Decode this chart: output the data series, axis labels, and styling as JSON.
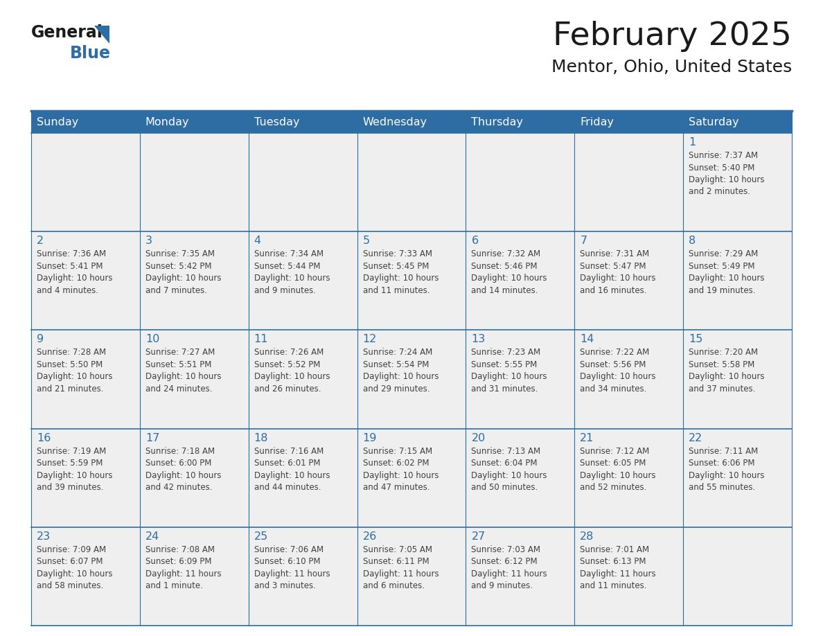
{
  "title": "February 2025",
  "subtitle": "Mentor, Ohio, United States",
  "days_of_week": [
    "Sunday",
    "Monday",
    "Tuesday",
    "Wednesday",
    "Thursday",
    "Friday",
    "Saturday"
  ],
  "header_bg": "#2E6DA4",
  "header_text": "#FFFFFF",
  "cell_bg": "#EFEFEF",
  "cell_bg_white": "#FFFFFF",
  "border_color": "#2E6DA4",
  "day_num_color": "#2E6DA4",
  "text_color": "#404040",
  "title_color": "#1a1a1a",
  "logo_black": "#1a1a1a",
  "logo_blue": "#2E6DA4",
  "week1": {
    "days": [
      null,
      null,
      null,
      null,
      null,
      null,
      1
    ],
    "data": [
      null,
      null,
      null,
      null,
      null,
      null,
      "Sunrise: 7:37 AM\nSunset: 5:40 PM\nDaylight: 10 hours\nand 2 minutes."
    ]
  },
  "week2": {
    "days": [
      2,
      3,
      4,
      5,
      6,
      7,
      8
    ],
    "data": [
      "Sunrise: 7:36 AM\nSunset: 5:41 PM\nDaylight: 10 hours\nand 4 minutes.",
      "Sunrise: 7:35 AM\nSunset: 5:42 PM\nDaylight: 10 hours\nand 7 minutes.",
      "Sunrise: 7:34 AM\nSunset: 5:44 PM\nDaylight: 10 hours\nand 9 minutes.",
      "Sunrise: 7:33 AM\nSunset: 5:45 PM\nDaylight: 10 hours\nand 11 minutes.",
      "Sunrise: 7:32 AM\nSunset: 5:46 PM\nDaylight: 10 hours\nand 14 minutes.",
      "Sunrise: 7:31 AM\nSunset: 5:47 PM\nDaylight: 10 hours\nand 16 minutes.",
      "Sunrise: 7:29 AM\nSunset: 5:49 PM\nDaylight: 10 hours\nand 19 minutes."
    ]
  },
  "week3": {
    "days": [
      9,
      10,
      11,
      12,
      13,
      14,
      15
    ],
    "data": [
      "Sunrise: 7:28 AM\nSunset: 5:50 PM\nDaylight: 10 hours\nand 21 minutes.",
      "Sunrise: 7:27 AM\nSunset: 5:51 PM\nDaylight: 10 hours\nand 24 minutes.",
      "Sunrise: 7:26 AM\nSunset: 5:52 PM\nDaylight: 10 hours\nand 26 minutes.",
      "Sunrise: 7:24 AM\nSunset: 5:54 PM\nDaylight: 10 hours\nand 29 minutes.",
      "Sunrise: 7:23 AM\nSunset: 5:55 PM\nDaylight: 10 hours\nand 31 minutes.",
      "Sunrise: 7:22 AM\nSunset: 5:56 PM\nDaylight: 10 hours\nand 34 minutes.",
      "Sunrise: 7:20 AM\nSunset: 5:58 PM\nDaylight: 10 hours\nand 37 minutes."
    ]
  },
  "week4": {
    "days": [
      16,
      17,
      18,
      19,
      20,
      21,
      22
    ],
    "data": [
      "Sunrise: 7:19 AM\nSunset: 5:59 PM\nDaylight: 10 hours\nand 39 minutes.",
      "Sunrise: 7:18 AM\nSunset: 6:00 PM\nDaylight: 10 hours\nand 42 minutes.",
      "Sunrise: 7:16 AM\nSunset: 6:01 PM\nDaylight: 10 hours\nand 44 minutes.",
      "Sunrise: 7:15 AM\nSunset: 6:02 PM\nDaylight: 10 hours\nand 47 minutes.",
      "Sunrise: 7:13 AM\nSunset: 6:04 PM\nDaylight: 10 hours\nand 50 minutes.",
      "Sunrise: 7:12 AM\nSunset: 6:05 PM\nDaylight: 10 hours\nand 52 minutes.",
      "Sunrise: 7:11 AM\nSunset: 6:06 PM\nDaylight: 10 hours\nand 55 minutes."
    ]
  },
  "week5": {
    "days": [
      23,
      24,
      25,
      26,
      27,
      28,
      null
    ],
    "data": [
      "Sunrise: 7:09 AM\nSunset: 6:07 PM\nDaylight: 10 hours\nand 58 minutes.",
      "Sunrise: 7:08 AM\nSunset: 6:09 PM\nDaylight: 11 hours\nand 1 minute.",
      "Sunrise: 7:06 AM\nSunset: 6:10 PM\nDaylight: 11 hours\nand 3 minutes.",
      "Sunrise: 7:05 AM\nSunset: 6:11 PM\nDaylight: 11 hours\nand 6 minutes.",
      "Sunrise: 7:03 AM\nSunset: 6:12 PM\nDaylight: 11 hours\nand 9 minutes.",
      "Sunrise: 7:01 AM\nSunset: 6:13 PM\nDaylight: 11 hours\nand 11 minutes.",
      null
    ]
  }
}
